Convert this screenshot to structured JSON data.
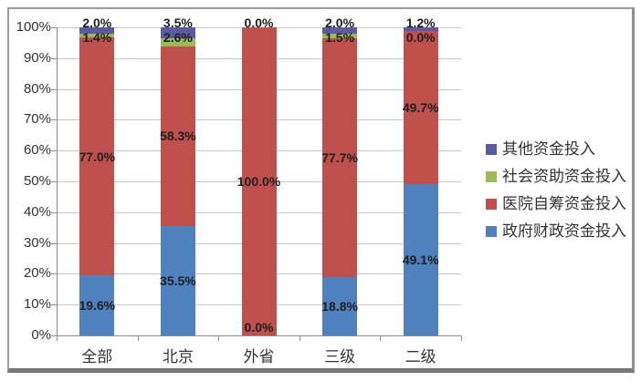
{
  "chart_data": {
    "type": "bar",
    "subtype": "stacked-100",
    "title": "",
    "xlabel": "",
    "ylabel": "",
    "categories": [
      "全部",
      "北京",
      "外省",
      "三级",
      "二级"
    ],
    "series": [
      {
        "name": "政府财政资金投入",
        "color": "#4E81BD",
        "values": [
          19.6,
          35.5,
          0.0,
          18.8,
          49.1
        ]
      },
      {
        "name": "医院自筹资金投入",
        "color": "#C0504D",
        "values": [
          77.0,
          58.3,
          100.0,
          77.7,
          49.7
        ]
      },
      {
        "name": "社会资助资金投入",
        "color": "#9BBB59",
        "values": [
          1.4,
          2.6,
          0.0,
          1.5,
          0.0
        ]
      },
      {
        "name": "其他资金投入",
        "color": "#5C5AA0",
        "values": [
          2.0,
          3.5,
          0.0,
          2.0,
          1.2
        ]
      }
    ],
    "data_labels": [
      [
        "19.6%",
        "77.0%",
        "1.4%",
        "2.0%"
      ],
      [
        "35.5%",
        "58.3%",
        "2.6%",
        "3.5%"
      ],
      [
        "0.0%",
        "100.0%",
        "0.0%"
      ],
      [
        "18.8%",
        "77.7%",
        "1.5%",
        "2.0%"
      ],
      [
        "49.1%",
        "49.7%",
        "0.0%",
        "1.2%"
      ]
    ],
    "y_ticks": [
      "0%",
      "10%",
      "20%",
      "30%",
      "40%",
      "50%",
      "60%",
      "70%",
      "80%",
      "90%",
      "100%"
    ],
    "ylim": [
      0,
      100
    ],
    "grid": true,
    "legend_position": "right",
    "legend": [
      {
        "label": "其他资金投入",
        "color": "#5C5AA0"
      },
      {
        "label": "社会资助资金投入",
        "color": "#9BBB59"
      },
      {
        "label": "医院自筹资金投入",
        "color": "#C0504D"
      },
      {
        "label": "政府财政资金投入",
        "color": "#4E81BD"
      }
    ],
    "colors": {
      "gridline": "#c6c6c6",
      "axis": "#8c8c8c",
      "label_text": "#1f1f1f",
      "tick_text": "#333333",
      "frame_border": "#9b9b9b"
    }
  }
}
